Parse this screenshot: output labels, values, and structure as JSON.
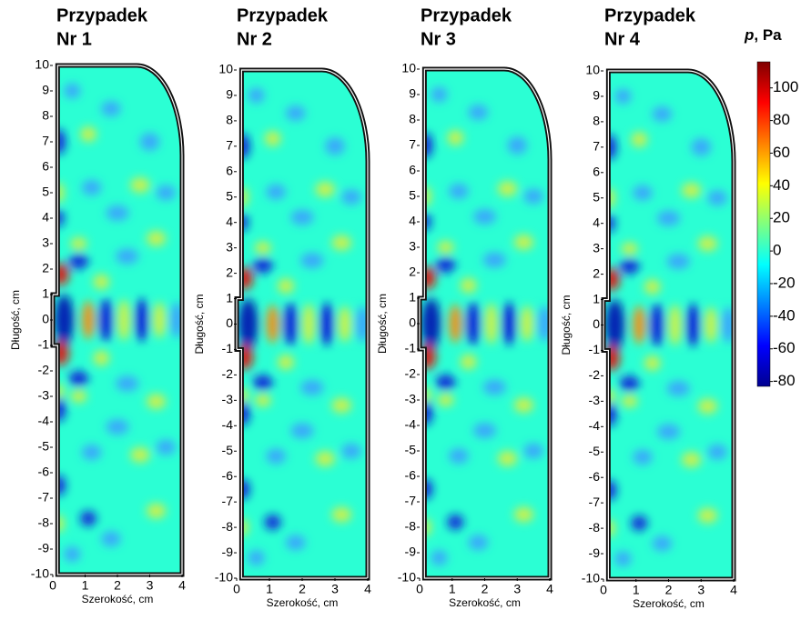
{
  "chart_data": [
    {
      "type": "heatmap",
      "title_lines": [
        "Przypadek",
        "Nr 1"
      ],
      "xlabel": "Szerokość, cm",
      "ylabel": "Długość, cm",
      "xlim": [
        0,
        4
      ],
      "ylim": [
        -10,
        10
      ],
      "xticks": [
        0,
        1,
        2,
        3,
        4
      ],
      "yticks": [
        -10,
        -9,
        -8,
        -7,
        -6,
        -5,
        -4,
        -3,
        -2,
        -1,
        0,
        1,
        2,
        3,
        4,
        5,
        6,
        7,
        8,
        9,
        10
      ],
      "colormap": "jet"
    },
    {
      "type": "heatmap",
      "title_lines": [
        "Przypadek",
        "Nr 2"
      ],
      "xlabel": "Szerokość, cm",
      "ylabel": "Długość, cm",
      "xlim": [
        0,
        4
      ],
      "ylim": [
        -10,
        10
      ],
      "xticks": [
        0,
        1,
        2,
        3,
        4
      ],
      "yticks": [
        -10,
        -9,
        -8,
        -7,
        -6,
        -5,
        -4,
        -3,
        -2,
        -1,
        0,
        1,
        2,
        3,
        4,
        5,
        6,
        7,
        8,
        9,
        10
      ],
      "colormap": "jet"
    },
    {
      "type": "heatmap",
      "title_lines": [
        "Przypadek",
        "Nr 3"
      ],
      "xlabel": "Szerokość, cm",
      "ylabel": "Długość, cm",
      "xlim": [
        0,
        4
      ],
      "ylim": [
        -10,
        10
      ],
      "xticks": [
        0,
        1,
        2,
        3,
        4
      ],
      "yticks": [
        -10,
        -9,
        -8,
        -7,
        -6,
        -5,
        -4,
        -3,
        -2,
        -1,
        0,
        1,
        2,
        3,
        4,
        5,
        6,
        7,
        8,
        9,
        10
      ],
      "colormap": "jet"
    },
    {
      "type": "heatmap",
      "title_lines": [
        "Przypadek",
        "Nr 4"
      ],
      "xlabel": "Szerokość, cm",
      "ylabel": "Długość, cm",
      "xlim": [
        0,
        4
      ],
      "ylim": [
        -10,
        10
      ],
      "xticks": [
        0,
        1,
        2,
        3,
        4
      ],
      "yticks": [
        -10,
        -9,
        -8,
        -7,
        -6,
        -5,
        -4,
        -3,
        -2,
        -1,
        0,
        1,
        2,
        3,
        4,
        5,
        6,
        7,
        8,
        9,
        10
      ],
      "colormap": "jet"
    }
  ],
  "colorbar": {
    "label_var": "p",
    "label_unit": ", Pa",
    "clim": [
      -83,
      116
    ],
    "ticks": [
      -80,
      -60,
      -40,
      -20,
      0,
      20,
      40,
      60,
      80,
      100
    ],
    "colormap": "jet"
  }
}
